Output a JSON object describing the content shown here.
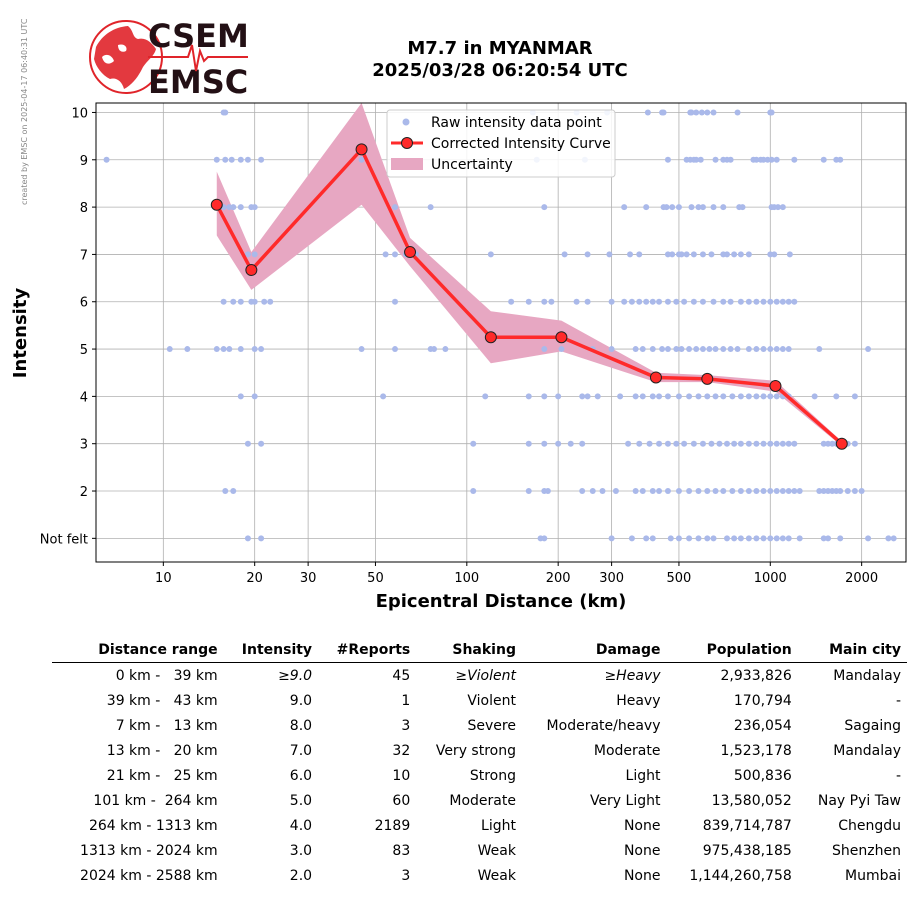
{
  "credit": "created by EMSC on 2025-04-17 06:40:31 UTC",
  "logo": {
    "line1": "CSEM",
    "line2": "EMSC",
    "color": "#e0242a"
  },
  "title": {
    "line1": "M7.7 in MYANMAR",
    "line2": "2025/03/28 06:20:54 UTC"
  },
  "chart_data": {
    "type": "scatter",
    "xlabel": "Epicentral Distance (km)",
    "ylabel": "Intensity",
    "x_scale": "log",
    "xlim": [
      6,
      2800
    ],
    "ylim": [
      0.5,
      10.2
    ],
    "x_ticks": [
      10,
      20,
      30,
      50,
      100,
      200,
      300,
      500,
      1000,
      2000
    ],
    "y_ticks": [
      {
        "value": 1,
        "label": "Not felt"
      },
      {
        "value": 2,
        "label": "2"
      },
      {
        "value": 3,
        "label": "3"
      },
      {
        "value": 4,
        "label": "4"
      },
      {
        "value": 5,
        "label": "5"
      },
      {
        "value": 6,
        "label": "6"
      },
      {
        "value": 7,
        "label": "7"
      },
      {
        "value": 8,
        "label": "8"
      },
      {
        "value": 9,
        "label": "9"
      },
      {
        "value": 10,
        "label": "10"
      }
    ],
    "grid": true,
    "legend": "top-center",
    "legend_entries": [
      "Raw intensity data point",
      "Corrected Intensity Curve",
      "Uncertainty"
    ],
    "colors": {
      "raw": "#aab9ea",
      "curve": "#ff2a2a",
      "marker_edge": "#222222",
      "uncertainty": "#e7a7c2"
    },
    "raw_points": {
      "10": [
        15.8,
        16.0,
        165,
        230,
        290,
        395,
        440,
        445,
        545,
        550,
        570,
        595,
        620,
        650,
        780,
        1000,
        1010
      ],
      "9": [
        6.5,
        15.0,
        16.0,
        16.8,
        18.0,
        19.0,
        21.0,
        45.0,
        170,
        245,
        460,
        530,
        545,
        560,
        570,
        590,
        660,
        700,
        720,
        740,
        880,
        900,
        930,
        950,
        980,
        1010,
        1050,
        1200,
        1500,
        1650,
        1700
      ],
      "8": [
        15.8,
        16.5,
        17.0,
        18.0,
        19.5,
        20.0,
        58,
        76,
        180,
        330,
        390,
        445,
        455,
        475,
        500,
        550,
        580,
        600,
        650,
        700,
        790,
        810,
        1010,
        1030,
        1060,
        1100
      ],
      "7": [
        19.0,
        20.0,
        54,
        58,
        63,
        65,
        68,
        120,
        210,
        250,
        295,
        345,
        370,
        460,
        475,
        500,
        510,
        530,
        560,
        600,
        640,
        700,
        720,
        760,
        800,
        850,
        1000,
        1030,
        1160
      ],
      "6": [
        15.8,
        17.0,
        18.0,
        19.5,
        20.0,
        21.5,
        22.5,
        58,
        140,
        160,
        180,
        190,
        230,
        250,
        300,
        330,
        350,
        370,
        390,
        410,
        430,
        460,
        490,
        520,
        560,
        600,
        650,
        700,
        740,
        800,
        850,
        900,
        950,
        1000,
        1050,
        1100,
        1150,
        1200
      ],
      "5": [
        10.5,
        12.0,
        15.0,
        15.8,
        16.5,
        18.0,
        20.0,
        21.0,
        45,
        58,
        76,
        78,
        85,
        180,
        205,
        260,
        300,
        360,
        380,
        410,
        440,
        460,
        490,
        510,
        540,
        570,
        600,
        630,
        660,
        700,
        740,
        780,
        850,
        900,
        950,
        1000,
        1050,
        1100,
        1150,
        1450,
        2100
      ],
      "4": [
        18.0,
        20.0,
        53,
        115,
        160,
        180,
        200,
        240,
        250,
        270,
        320,
        360,
        380,
        410,
        430,
        460,
        500,
        540,
        580,
        620,
        660,
        700,
        750,
        800,
        850,
        900,
        950,
        1000,
        1050,
        1100,
        1150,
        1400,
        1650,
        1900
      ],
      "3": [
        19.0,
        21.0,
        105,
        160,
        180,
        200,
        220,
        240,
        340,
        370,
        400,
        430,
        460,
        490,
        520,
        560,
        600,
        640,
        680,
        720,
        760,
        800,
        850,
        900,
        950,
        1000,
        1050,
        1100,
        1150,
        1200,
        1500,
        1550,
        1600,
        1650,
        1700,
        1800,
        1900
      ],
      "2": [
        16.0,
        17.0,
        105,
        160,
        180,
        185,
        240,
        260,
        280,
        310,
        360,
        380,
        410,
        430,
        460,
        500,
        540,
        580,
        620,
        660,
        700,
        750,
        800,
        850,
        900,
        950,
        1000,
        1050,
        1100,
        1150,
        1200,
        1250,
        1450,
        1500,
        1550,
        1600,
        1650,
        1700,
        1800,
        1900,
        2000
      ],
      "1": [
        19.0,
        21.0,
        175,
        180,
        300,
        350,
        390,
        410,
        470,
        500,
        540,
        580,
        620,
        650,
        720,
        760,
        800,
        850,
        900,
        950,
        1000,
        1050,
        1100,
        1150,
        1250,
        1500,
        1550,
        1700,
        2100,
        2450,
        2550
      ]
    },
    "curve": [
      {
        "x": 15.0,
        "y": 8.05,
        "lo": 7.4,
        "hi": 8.75
      },
      {
        "x": 19.5,
        "y": 6.67,
        "lo": 6.25,
        "hi": 7.05
      },
      {
        "x": 45.0,
        "y": 9.22,
        "lo": 8.05,
        "hi": 10.2
      },
      {
        "x": 65.0,
        "y": 7.05,
        "lo": 6.75,
        "hi": 7.35
      },
      {
        "x": 120.0,
        "y": 5.25,
        "lo": 4.7,
        "hi": 5.8
      },
      {
        "x": 205.0,
        "y": 5.25,
        "lo": 4.95,
        "hi": 5.6
      },
      {
        "x": 420.0,
        "y": 4.4,
        "lo": 4.3,
        "hi": 4.5
      },
      {
        "x": 620.0,
        "y": 4.37,
        "lo": 4.3,
        "hi": 4.45
      },
      {
        "x": 1040.0,
        "y": 4.22,
        "lo": 4.1,
        "hi": 4.33
      },
      {
        "x": 1720.0,
        "y": 3.0,
        "lo": 2.95,
        "hi": 3.05
      }
    ]
  },
  "table": {
    "headers": [
      "Distance range",
      "Intensity",
      "#Reports",
      "Shaking",
      "Damage",
      "Population",
      "Main city"
    ],
    "rows": [
      [
        "0 km -   39 km",
        "≥9.0",
        "45",
        "≥Violent",
        "≥Heavy",
        "2,933,826",
        "Mandalay"
      ],
      [
        "39 km -   43 km",
        "9.0",
        "1",
        "Violent",
        "Heavy",
        "170,794",
        "-"
      ],
      [
        "7 km -   13 km",
        "8.0",
        "3",
        "Severe",
        "Moderate/heavy",
        "236,054",
        "Sagaing"
      ],
      [
        "13 km -   20 km",
        "7.0",
        "32",
        "Very strong",
        "Moderate",
        "1,523,178",
        "Mandalay"
      ],
      [
        "21 km -   25 km",
        "6.0",
        "10",
        "Strong",
        "Light",
        "500,836",
        "-"
      ],
      [
        "101 km -  264 km",
        "5.0",
        "60",
        "Moderate",
        "Very Light",
        "13,580,052",
        "Nay Pyi Taw"
      ],
      [
        "264 km - 1313 km",
        "4.0",
        "2189",
        "Light",
        "None",
        "839,714,787",
        "Chengdu"
      ],
      [
        "1313 km - 2024 km",
        "3.0",
        "83",
        "Weak",
        "None",
        "975,438,185",
        "Shenzhen"
      ],
      [
        "2024 km - 2588 km",
        "2.0",
        "3",
        "Weak",
        "None",
        "1,144,260,758",
        "Mumbai"
      ]
    ],
    "italic_first_row_cols": [
      1,
      3,
      4
    ]
  }
}
